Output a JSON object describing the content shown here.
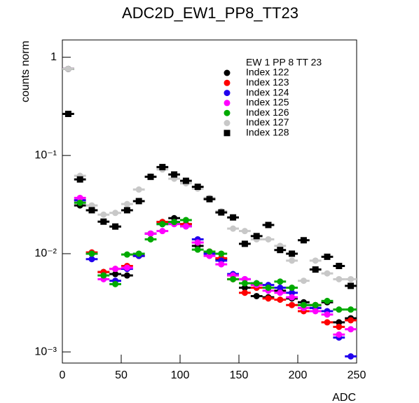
{
  "chart_data": {
    "type": "scatter",
    "title": "ADC2D_EW1_PP8_TT23",
    "x_label": "ADC",
    "y_label": "counts norm",
    "legend_title": "EW 1 PP 8 TT 23",
    "legend": "top-right",
    "log_y": true,
    "bin_width": 10,
    "xlim": [
      0,
      250
    ],
    "xticks": [
      0,
      50,
      100,
      150,
      200,
      250
    ],
    "ylim": [
      0.00077,
      1.5
    ],
    "yticks": [
      {
        "value": 0.001,
        "label": "10⁻³"
      },
      {
        "value": 0.01,
        "label": "10⁻²"
      },
      {
        "value": 0.1,
        "label": "10⁻¹"
      },
      1
    ],
    "x": [
      5,
      15,
      25,
      35,
      45,
      55,
      65,
      75,
      85,
      95,
      105,
      115,
      125,
      135,
      145,
      155,
      165,
      175,
      185,
      195,
      205,
      215,
      225,
      235,
      245
    ],
    "series": [
      {
        "name": "Index 122",
        "color": "#000000",
        "marker": "circle",
        "values": [
          0.76,
          0.031,
          0.01,
          0.0065,
          0.0062,
          0.006,
          0.0095,
          0.016,
          0.021,
          0.023,
          0.02,
          0.012,
          0.0105,
          0.0088,
          0.006,
          0.0045,
          0.0037,
          0.0036,
          0.0042,
          0.0035,
          0.0032,
          0.0028,
          0.0032,
          0.002,
          0.0022
        ]
      },
      {
        "name": "Index 123",
        "color": "#ff0000",
        "marker": "circle",
        "values": [
          0.76,
          0.035,
          0.0103,
          0.0065,
          0.007,
          0.0075,
          0.0095,
          0.016,
          0.021,
          0.021,
          0.02,
          0.013,
          0.0105,
          0.009,
          0.0055,
          0.004,
          0.0045,
          0.0035,
          0.0034,
          0.003,
          0.0026,
          0.003,
          0.002,
          0.0018,
          0.0021
        ]
      },
      {
        "name": "Index 124",
        "color": "#2200ee",
        "marker": "circle",
        "values": [
          0.76,
          0.035,
          0.0088,
          0.006,
          0.0053,
          0.007,
          0.0095,
          0.016,
          0.02,
          0.021,
          0.019,
          0.014,
          0.01,
          0.0085,
          0.0062,
          0.0055,
          0.005,
          0.0048,
          0.0045,
          0.004,
          0.003,
          0.0028,
          0.0026,
          0.0014,
          0.0009
        ]
      },
      {
        "name": "Index 125",
        "color": "#ff00ff",
        "marker": "circle",
        "values": [
          0.76,
          0.037,
          0.01,
          0.0055,
          0.007,
          0.0072,
          0.01,
          0.016,
          0.017,
          0.02,
          0.019,
          0.013,
          0.0095,
          0.0078,
          0.006,
          0.0055,
          0.0048,
          0.0042,
          0.004,
          0.0036,
          0.0028,
          0.0026,
          0.0024,
          0.0015,
          0.0017
        ]
      },
      {
        "name": "Index 126",
        "color": "#00aa00",
        "marker": "circle",
        "values": [
          0.76,
          0.033,
          0.01,
          0.006,
          0.0049,
          0.0098,
          0.01,
          0.014,
          0.02,
          0.021,
          0.022,
          0.011,
          0.0105,
          0.01,
          0.0055,
          0.005,
          0.005,
          0.0045,
          0.0052,
          0.0045,
          0.003,
          0.003,
          0.0033,
          0.0027,
          0.0027
        ]
      },
      {
        "name": "Index 127",
        "color": "#c8c8c8",
        "marker": "circle",
        "values": [
          0.76,
          0.062,
          0.031,
          0.025,
          0.026,
          0.032,
          0.045,
          0.061,
          0.072,
          0.058,
          0.052,
          0.046,
          0.037,
          0.027,
          0.018,
          0.017,
          0.014,
          0.014,
          0.012,
          0.0085,
          0.0053,
          0.0085,
          0.0063,
          0.0055,
          0.0055
        ]
      },
      {
        "name": "Index 128",
        "color": "#000000",
        "marker": "square",
        "values": [
          0.265,
          0.057,
          0.0277,
          0.0212,
          0.0189,
          0.0277,
          0.0343,
          0.0606,
          0.0762,
          0.064,
          0.0552,
          0.048,
          0.0359,
          0.0263,
          0.0234,
          0.0126,
          0.0151,
          0.0196,
          0.0109,
          0.01,
          0.0137,
          0.0069,
          0.0093,
          0.0075,
          0.0047
        ]
      }
    ]
  }
}
